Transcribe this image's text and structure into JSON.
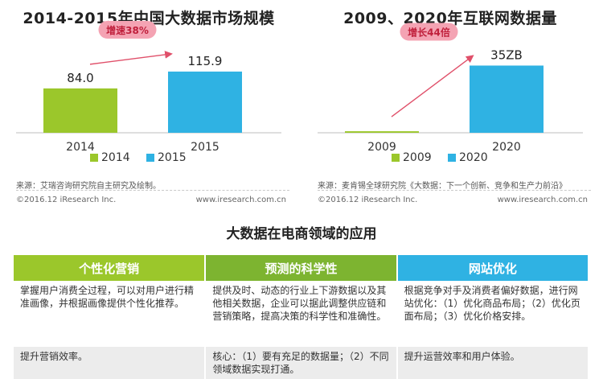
{
  "left_chart": {
    "title": "2014-2015年中国大数据市场规模",
    "source": "来源：艾瑞咨询研究院自主研究及绘制。",
    "copyright": "©2016.12 iResearch Inc.",
    "website": "www.iresearch.com.cn",
    "annotation": "增速38%"
  },
  "right_chart": {
    "title": "2009、2020年互联网数据量",
    "source": "来源：麦肯锡全球研究院《大数据：下一个创新、竞争和生产力前沿》",
    "copyright": "©2016.12 iResearch Inc.",
    "website": "www.iresearch.com.cn",
    "annotation": "增长44倍"
  },
  "chart_data": [
    {
      "type": "bar",
      "title": "2014-2015年中国大数据市场规模",
      "categories": [
        "2014",
        "2015"
      ],
      "values": [
        84.0,
        115.9
      ],
      "value_labels": [
        "84.0",
        "115.9"
      ],
      "colors": [
        "#9bc72b",
        "#2fb2e3"
      ],
      "legend": [
        "2014",
        "2015"
      ],
      "legend_position": "bottom",
      "annotation": "增速38%",
      "ylim": [
        0,
        160
      ],
      "grid": false
    },
    {
      "type": "bar",
      "title": "2009、2020年互联网数据量",
      "categories": [
        "2009",
        "2020"
      ],
      "values": [
        0.8,
        35
      ],
      "value_labels": [
        "",
        "35ZB"
      ],
      "unit": "ZB",
      "colors": [
        "#9bc72b",
        "#2fb2e3"
      ],
      "legend": [
        "2009",
        "2020"
      ],
      "legend_position": "bottom",
      "annotation": "增长44倍",
      "ylim": [
        0,
        44
      ],
      "grid": false
    }
  ],
  "section_title": "大数据在电商领域的应用",
  "table": {
    "headers": [
      "个性化营销",
      "预测的科学性",
      "网站优化"
    ],
    "header_colors": [
      "#9bc72b",
      "#7db430",
      "#2fb2e3"
    ],
    "descriptions": [
      "掌握用户消费全过程，可以对用户进行精准画像，并根据画像提供个性化推荐。",
      "提供及时、动态的行业上下游数据以及其他相关数据，企业可以据此调整供应链和营销策略，提高决策的科学性和准确性。",
      "根据竞争对手及消费者偏好数据，进行网站优化：（1）优化商品布局；（2）优化页面布局；（3）优化价格安排。"
    ],
    "benefits": [
      "提升营销效率。",
      "核心：（1）要有充足的数据量；（2）不同领域数据实现打通。",
      "提升运营效率和用户体验。"
    ]
  }
}
